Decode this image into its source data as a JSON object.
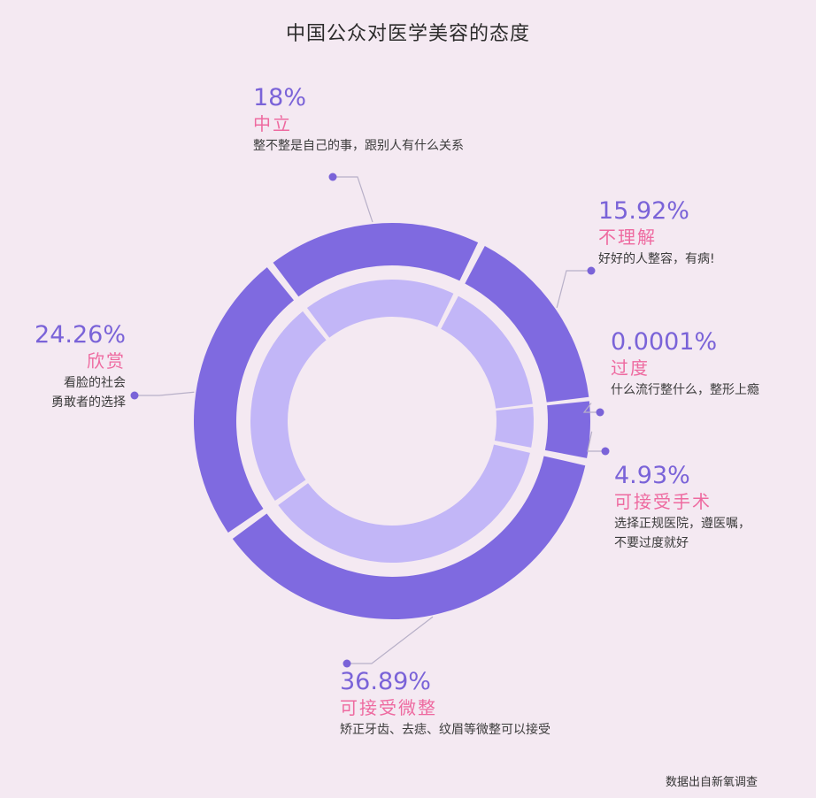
{
  "title": "中国公众对医学美容的态度",
  "source": "数据出自新氧调查",
  "colors": {
    "outer": "#7f6ae0",
    "inner": "#c2b6f7",
    "percent": "#7a63d8",
    "name": "#ee6aa0",
    "background": "#f4e9f2"
  },
  "chart_data": {
    "type": "pie",
    "title": "中国公众对医学美容的态度",
    "slices": [
      {
        "label": "中立",
        "percent": "18%",
        "value": 18,
        "desc": "整不整是自己的事，跟别人有什么关系"
      },
      {
        "label": "不理解",
        "percent": "15.92%",
        "value": 15.92,
        "desc": "好好的人整容，有病!"
      },
      {
        "label": "过度",
        "percent": "0.0001%",
        "value": 0.0001,
        "desc": "什么流行整什么，整形上瘾"
      },
      {
        "label": "可接受手术",
        "percent": "4.93%",
        "value": 4.93,
        "desc_lines": [
          "选择正规医院，遵医嘱，",
          "不要过度就好"
        ]
      },
      {
        "label": "可接受微整",
        "percent": "36.89%",
        "value": 36.89,
        "desc": "矫正牙齿、去痣、纹眉等微整可以接受"
      },
      {
        "label": "欣赏",
        "percent": "24.26%",
        "value": 24.26,
        "desc_lines": [
          "看脸的社会",
          "勇敢者的选择"
        ]
      }
    ]
  }
}
